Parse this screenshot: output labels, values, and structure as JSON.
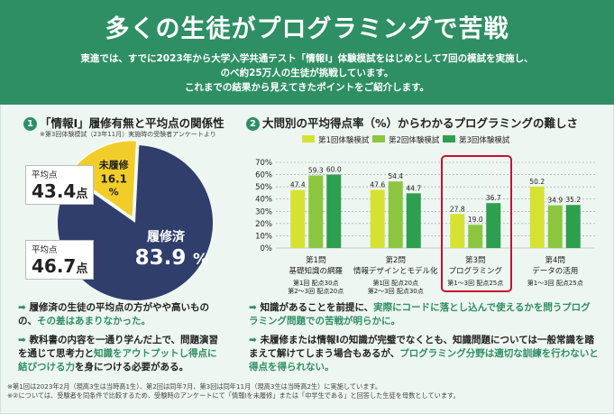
{
  "header": {
    "title": "多くの生徒がプログラミングで苦戦",
    "lines": [
      "東進では、すでに2023年から大学入学共通テスト「情報Ⅰ」体験模試をはじめとして7回の模試を実施し、",
      "のべ約25万人の生徒が挑戦しています。",
      "これまでの結果から見えてきたポイントをご紹介します。"
    ]
  },
  "section1": {
    "num": "1",
    "title": "「情報Ⅰ」履修有無と平均点の関係性",
    "note": "※第3回体験模試（23年11月）実施時の受験者アンケートより",
    "pie": {
      "slices": [
        {
          "label": "履修済",
          "pct": 83.9,
          "value_text": "83.9",
          "unit": "%",
          "color": "#2f3e6b"
        },
        {
          "label": "未履修",
          "pct": 16.1,
          "value_text": "16.1",
          "unit": "%",
          "color": "#f2cd2a"
        }
      ]
    },
    "callout_top": {
      "label": "平均点",
      "value": "43.4",
      "unit": "点"
    },
    "callout_bottom": {
      "label": "平均点",
      "value": "46.7",
      "unit": "点"
    }
  },
  "section2": {
    "num": "2",
    "title": "大問別の平均得点率（%）からわかるプログラミングの難しさ"
  },
  "colors": {
    "green_dark": "#2f8f64",
    "series": [
      "#d6e232",
      "#8cc63f",
      "#2e9e4f"
    ],
    "highlight": "#c8102e"
  },
  "chart_data": {
    "type": "bar",
    "yticks": [
      "70%",
      "60%",
      "50%",
      "40%",
      "30%",
      "20%",
      "10%",
      "0%"
    ],
    "ylim": [
      0,
      70
    ],
    "legend": [
      "第1回体験模試",
      "第2回体験模試",
      "第3回体験模試"
    ],
    "groups": [
      {
        "title": "第1問",
        "subtitle": "基礎知識の網羅",
        "allocation": [
          "第1回 配点30点",
          "第2〜3回 配点20点"
        ],
        "bars": [
          {
            "series": 1,
            "value": 47.4,
            "label": "47.4"
          },
          {
            "series": 2,
            "value": 59.3,
            "label": "59.3"
          },
          {
            "series": 3,
            "value": 60.0,
            "label": "60.0"
          }
        ]
      },
      {
        "title": "第2問",
        "subtitle": "情報デザインとモデル化",
        "allocation": [
          "第1回 配点20点",
          "第2〜3回 配点30点"
        ],
        "bars": [
          {
            "series": 1,
            "value": 47.6,
            "label": "47.6"
          },
          {
            "series": 2,
            "value": 54.4,
            "label": "54.4"
          },
          {
            "series": 3,
            "value": 44.7,
            "label": "44.7"
          }
        ]
      },
      {
        "title": "第3問",
        "subtitle": "プログラミング",
        "allocation": [
          "第1〜3回 配点25点"
        ],
        "bars": [
          {
            "series": 1,
            "value": 27.8,
            "label": "27.8"
          },
          {
            "series": 2,
            "value": 19.0,
            "label": "19.0"
          },
          {
            "series": 3,
            "value": 36.7,
            "label": "36.7"
          }
        ]
      },
      {
        "title": "第4問",
        "subtitle": "データの活用",
        "allocation": [
          "第1〜3回 配点25点"
        ],
        "bars": [
          {
            "series": 1,
            "value": 50.2,
            "label": "50.2"
          },
          {
            "series": 2,
            "value": 34.9,
            "label": "34.9"
          },
          {
            "series": 3,
            "value": 35.2,
            "label": "35.2"
          }
        ]
      }
    ]
  },
  "bullets_left": [
    {
      "arrow": "➡",
      "t1": "履修済の生徒の平均点の方がやや高いものの、",
      "t2": "その差はあまりなかった。"
    },
    {
      "arrow": "➡",
      "t1": "教科書の内容を一通り学んだ上で、問題演習を通じて思考力と",
      "t2": "知識をアウトプットし得点に結びつける力",
      "t3": "を身につける必要がある。"
    }
  ],
  "bullets_right": [
    {
      "arrow": "➡",
      "t1": "知識があることを前提に、",
      "t2": "実際にコードに落とし込んで使えるかを問うプログラミング問題での苦戦が明らかに。"
    },
    {
      "arrow": "➡",
      "t1": "未履修または情報Ⅰの知識が完璧でなくとも、知識問題については一般常識を踏まえて解けてしまう場合もあるが、",
      "t2": "プログラミング分野は適切な訓練を行わないと得点を得られない。"
    }
  ],
  "footnotes": [
    "※第1回は2023年2月（現高3生は当時高1生）、第2回は同年7月、第3回は同年11月（現高3生は当時高2生）に実施しています。",
    "※②については、受験者を同条件で比較するため、受験時のアンケートにて「情報Ⅰを未履修」または「中学生である」と回答した生徒を母数としています。"
  ]
}
